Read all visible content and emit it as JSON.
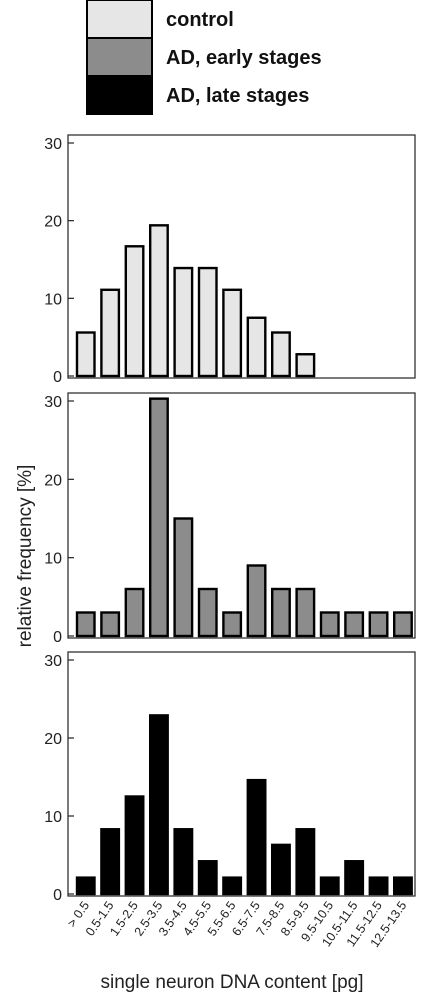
{
  "chart_data": {
    "type": "bar",
    "ylabel": "relative frequency [%]",
    "xlabel": "single neuron DNA content [pg]",
    "categories": [
      "> 0.5",
      "0.5-1.5",
      "1.5-2.5",
      "2.5-3.5",
      "3.5-4.5",
      "4.5-5.5",
      "5.5-6.5",
      "6.5-7.5",
      "7.5-8.5",
      "8.5-9.5",
      "9.5-10.5",
      "10.5-11.5",
      "11.5-12.5",
      "12.5-13.5"
    ],
    "ylim": [
      0,
      30
    ],
    "yticks": [
      "0",
      "10",
      "20",
      "30"
    ],
    "legend": {
      "placement": "top",
      "entries": [
        {
          "label": "control",
          "color": "#e6e6e6"
        },
        {
          "label": "AD, early stages",
          "color": "#8c8c8c"
        },
        {
          "label": "AD, late stages",
          "color": "#000000"
        }
      ]
    },
    "series": [
      {
        "name": "control",
        "color": "#e6e6e6",
        "values": [
          5.6,
          11.1,
          16.7,
          19.4,
          13.9,
          13.9,
          11.1,
          7.5,
          5.6,
          2.8,
          0,
          0,
          0,
          0
        ]
      },
      {
        "name": "AD, early stages",
        "color": "#8c8c8c",
        "values": [
          3.0,
          3.0,
          6.0,
          30.3,
          15.0,
          6.0,
          3.0,
          9.0,
          6.0,
          6.0,
          3.0,
          3.0,
          3.0,
          3.0
        ]
      },
      {
        "name": "AD, late stages",
        "color": "#000000",
        "values": [
          2.1,
          8.3,
          12.5,
          22.9,
          8.3,
          4.2,
          2.1,
          14.6,
          6.3,
          8.3,
          2.1,
          4.2,
          2.1,
          2.1
        ]
      }
    ]
  }
}
